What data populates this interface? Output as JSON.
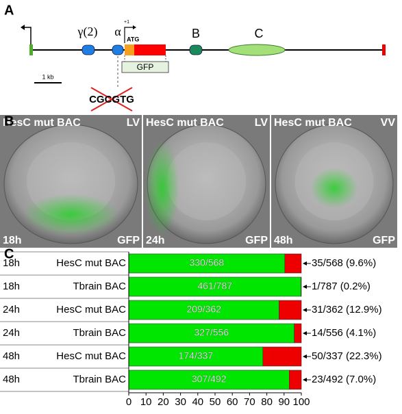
{
  "figure": {
    "panel_a": {
      "label": "A",
      "gamma": "γ(2)",
      "alpha": "α",
      "tss": "+1",
      "atg": "ATG",
      "b": "B",
      "c": "C",
      "gfp": "GFP",
      "scale": "1 kb",
      "motif": "CGCGTG"
    },
    "panel_b": {
      "label": "B",
      "images": [
        {
          "construct": "HesC mut BAC",
          "view": "LV",
          "time": "18h",
          "channel": "GFP"
        },
        {
          "construct": "HesC mut BAC",
          "view": "LV",
          "time": "24h",
          "channel": "GFP"
        },
        {
          "construct": "HesC mut BAC",
          "view": "VV",
          "time": "48h",
          "channel": "GFP"
        }
      ]
    },
    "panel_c": {
      "label": "C"
    }
  },
  "chart_data": {
    "type": "bar",
    "orientation": "horizontal",
    "stacked": true,
    "times": [
      "18h",
      "18h",
      "24h",
      "24h",
      "48h",
      "48h"
    ],
    "categories": [
      "HesC mut BAC",
      "Tbrain BAC",
      "HesC mut BAC",
      "Tbrain BAC",
      "HesC mut BAC",
      "Tbrain BAC"
    ],
    "series": [
      {
        "color": "#00e600",
        "values": [
          90.4,
          99.8,
          87.1,
          95.9,
          77.7,
          93.0
        ]
      },
      {
        "color": "#ee0000",
        "values": [
          9.6,
          0.2,
          12.9,
          4.1,
          22.3,
          7.0
        ]
      }
    ],
    "bar_labels": [
      "330/568",
      "461/787",
      "209/362",
      "327/556",
      "174/337",
      "307/492"
    ],
    "right_labels": [
      "35/568 (9.6%)",
      "1/787 (0.2%)",
      "31/362 (12.9%)",
      "14/556 (4.1%)",
      "50/337 (22.3%)",
      "23/492 (7.0%)"
    ],
    "xlim": [
      0,
      100
    ],
    "xticks": [
      0,
      10,
      20,
      30,
      40,
      50,
      60,
      70,
      80,
      90,
      100
    ]
  }
}
